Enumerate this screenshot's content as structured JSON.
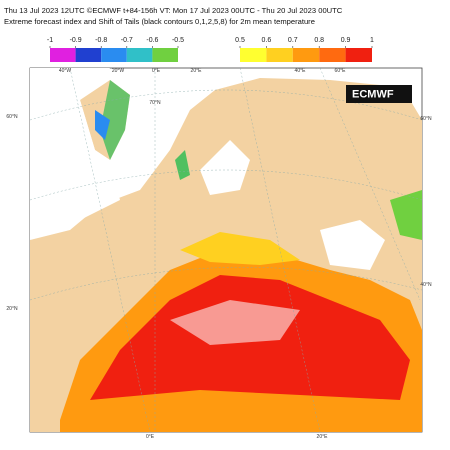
{
  "header": {
    "line1": "Thu 13 Jul 2023 12UTC ©ECMWF t+84-156h  VT: Mon 17 Jul 2023 00UTC - Thu 20 Jul 2023 00UTC",
    "line2": "Extreme forecast index and Shift of Tails (black contours 0,1,2,5,8) for 2m mean temperature"
  },
  "legend_negative": {
    "ticks": [
      -1,
      -0.9,
      -0.8,
      -0.7,
      -0.6,
      -0.5
    ],
    "colors": [
      "#e020e0",
      "#2040d0",
      "#2a8cf0",
      "#30c0c8",
      "#70d040"
    ]
  },
  "legend_positive": {
    "ticks": [
      0.5,
      0.6,
      0.7,
      0.8,
      0.9,
      1
    ],
    "colors": [
      "#ffff30",
      "#ffd020",
      "#ff9a10",
      "#ff6a10",
      "#f02010"
    ]
  },
  "logo": "ECMWF",
  "map_labels": [
    "40°W",
    "20°W",
    "0°E",
    "20°E",
    "40°E",
    "60°E",
    "70°N",
    "60°N",
    "60°N",
    "20°N",
    "40°N",
    "0°E",
    "20°E"
  ]
}
